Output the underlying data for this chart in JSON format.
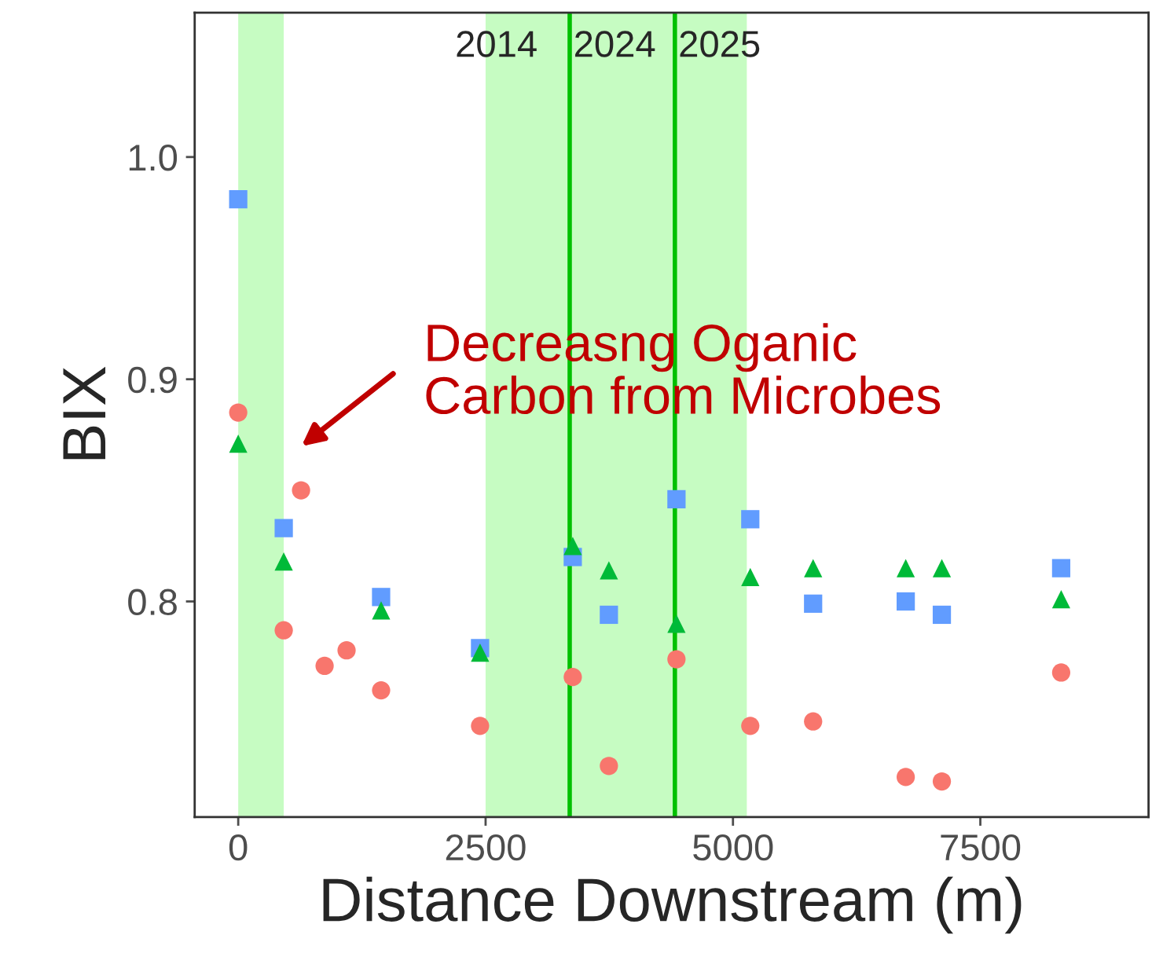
{
  "chart_data": {
    "type": "scatter",
    "xlabel": "Distance Downstream (m)",
    "ylabel": "BIX",
    "xlim": [
      -440,
      9200
    ],
    "ylim": [
      0.703,
      1.065
    ],
    "xticks": [
      0,
      2500,
      5000,
      7500
    ],
    "yticks": [
      {
        "value": 0.8,
        "label": "0.8"
      },
      {
        "value": 0.9,
        "label": "0.9"
      },
      {
        "value": 1.0,
        "label": "1.0"
      }
    ],
    "grid": false,
    "bands": [
      {
        "axis": "x",
        "from": 0,
        "to": 460,
        "color": "#c6fcc2"
      },
      {
        "axis": "x",
        "from": 2500,
        "to": 5140,
        "color": "#c6fcc2"
      }
    ],
    "ref_lines": [
      {
        "axis": "x",
        "value": 3350,
        "color": "#00c000"
      },
      {
        "axis": "x",
        "value": 4413,
        "color": "#00c000"
      }
    ],
    "annotations": [
      "2014",
      "2024",
      "2025",
      "Decreasng Oganic\nCarbon from Microbes"
    ],
    "series": [
      {
        "color": "#f8766d",
        "marker": "circle",
        "x": [
          0,
          635,
          460,
          873,
          1095,
          1444,
          2444,
          3381,
          3746,
          4429,
          5175,
          5810,
          6746,
          7111,
          8317
        ],
        "values": [
          0.885,
          0.85,
          0.787,
          0.771,
          0.778,
          0.76,
          0.744,
          0.766,
          0.726,
          0.774,
          0.744,
          0.746,
          0.721,
          0.719,
          0.768
        ]
      },
      {
        "color": "#619cff",
        "marker": "square",
        "x": [
          0,
          460,
          1444,
          2444,
          3381,
          3746,
          4429,
          5175,
          5810,
          6746,
          7111,
          8317
        ],
        "values": [
          0.981,
          0.833,
          0.802,
          0.779,
          0.82,
          0.794,
          0.846,
          0.837,
          0.799,
          0.8,
          0.794,
          0.815
        ]
      },
      {
        "color": "#00ba38",
        "marker": "triangle",
        "x": [
          0,
          460,
          1444,
          2444,
          3381,
          3746,
          4429,
          5175,
          5810,
          6746,
          7111,
          8317
        ],
        "values": [
          0.871,
          0.818,
          0.796,
          0.777,
          0.825,
          0.814,
          0.79,
          0.811,
          0.815,
          0.815,
          0.815,
          0.801
        ]
      }
    ]
  }
}
